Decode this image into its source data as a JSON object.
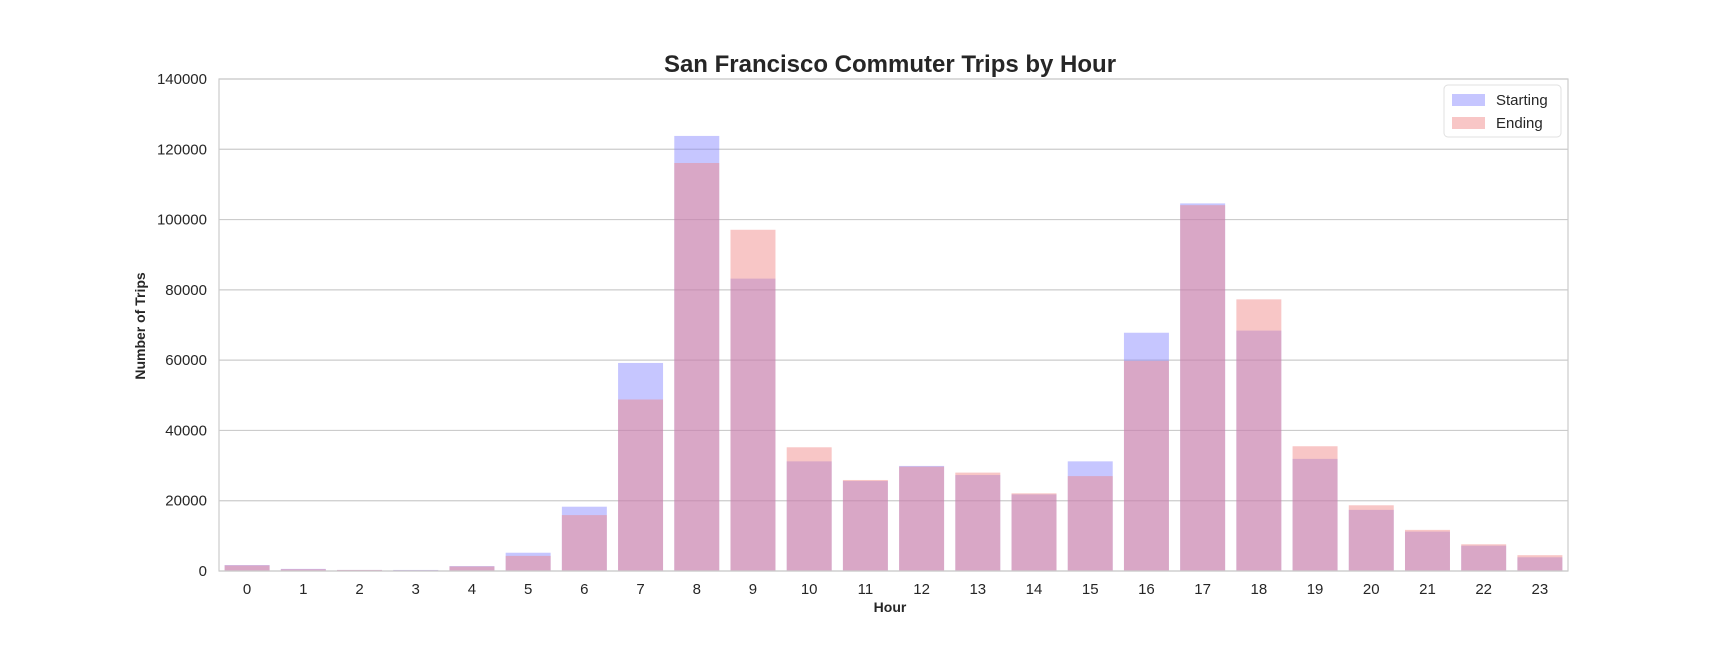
{
  "chart_data": {
    "type": "bar",
    "title": "San Francisco Commuter Trips by Hour",
    "xlabel": "Hour",
    "ylabel": "Number of Trips",
    "categories": [
      "0",
      "1",
      "2",
      "3",
      "4",
      "5",
      "6",
      "7",
      "8",
      "9",
      "10",
      "11",
      "12",
      "13",
      "14",
      "15",
      "16",
      "17",
      "18",
      "19",
      "20",
      "21",
      "22",
      "23"
    ],
    "ylim": [
      0,
      140000
    ],
    "yticks": [
      0,
      20000,
      40000,
      60000,
      80000,
      100000,
      120000,
      140000
    ],
    "grid": true,
    "legend_position": "top-right",
    "series": [
      {
        "name": "Starting",
        "color": "#8080ff",
        "opacity": 0.45,
        "values": [
          1700,
          600,
          300,
          300,
          1400,
          5200,
          18300,
          59200,
          123800,
          83200,
          31200,
          25600,
          29900,
          27300,
          21800,
          31200,
          67800,
          104600,
          68400,
          31900,
          17400,
          11200,
          7200,
          3900
        ]
      },
      {
        "name": "Ending",
        "color": "#f08080",
        "opacity": 0.45,
        "values": [
          1600,
          500,
          300,
          200,
          1300,
          4300,
          15900,
          48800,
          116100,
          97100,
          35200,
          25900,
          29700,
          28000,
          22100,
          27000,
          59800,
          104100,
          77300,
          35500,
          18700,
          11700,
          7600,
          4500
        ]
      }
    ]
  }
}
